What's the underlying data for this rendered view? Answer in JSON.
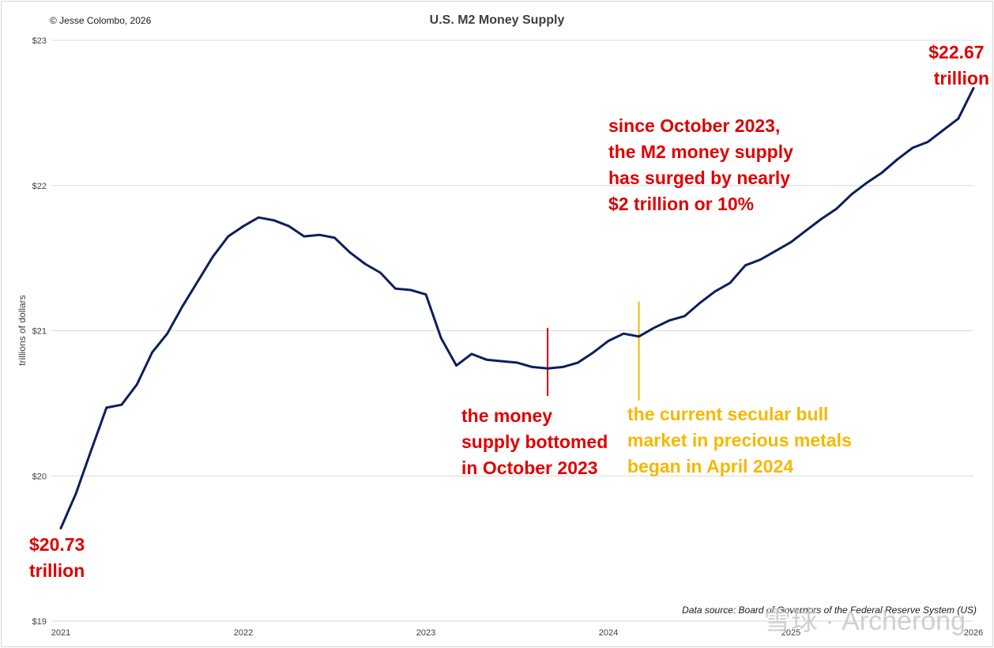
{
  "chart_data": {
    "type": "line",
    "title": "U.S. M2 Money Supply",
    "copyright": "© Jesse Colombo, 2026",
    "ylabel": "trillions of dollars",
    "xlabel": "",
    "ylim": [
      19,
      23
    ],
    "xlim": [
      2021.0,
      2026.0
    ],
    "grid": "horizontal",
    "y_ticks": [
      {
        "value": 19,
        "label": "$19"
      },
      {
        "value": 20,
        "label": "$20"
      },
      {
        "value": 21,
        "label": "$21"
      },
      {
        "value": 22,
        "label": "$22"
      },
      {
        "value": 23,
        "label": "$23"
      }
    ],
    "x_ticks": [
      {
        "value": 2021,
        "label": "2021"
      },
      {
        "value": 2022,
        "label": "2022"
      },
      {
        "value": 2023,
        "label": "2023"
      },
      {
        "value": 2024,
        "label": "2024"
      },
      {
        "value": 2025,
        "label": "2025"
      },
      {
        "value": 2026,
        "label": "2026"
      }
    ],
    "series": [
      {
        "color": "#0d1f5c",
        "x": [
          2021.0,
          2021.083,
          2021.167,
          2021.25,
          2021.333,
          2021.417,
          2021.5,
          2021.583,
          2021.667,
          2021.75,
          2021.833,
          2021.917,
          2022.0,
          2022.083,
          2022.167,
          2022.25,
          2022.333,
          2022.417,
          2022.5,
          2022.583,
          2022.667,
          2022.75,
          2022.833,
          2022.917,
          2023.0,
          2023.083,
          2023.167,
          2023.25,
          2023.333,
          2023.417,
          2023.5,
          2023.583,
          2023.667,
          2023.75,
          2023.833,
          2023.917,
          2024.0,
          2024.083,
          2024.167,
          2024.25,
          2024.333,
          2024.417,
          2024.5,
          2024.583,
          2024.667,
          2024.75,
          2024.833,
          2024.917,
          2025.0,
          2025.083,
          2025.167,
          2025.25,
          2025.333,
          2025.417,
          2025.5,
          2025.583,
          2025.667,
          2025.75,
          2025.833,
          2025.917
        ],
        "y": [
          19.64,
          19.88,
          20.18,
          20.47,
          20.49,
          20.63,
          20.85,
          20.98,
          21.17,
          21.34,
          21.51,
          21.65,
          21.72,
          21.78,
          21.76,
          21.72,
          21.65,
          21.66,
          21.64,
          21.54,
          21.46,
          21.4,
          21.29,
          21.28,
          21.25,
          20.95,
          20.76,
          20.84,
          20.8,
          20.79,
          20.78,
          20.75,
          20.74,
          20.75,
          20.78,
          20.85,
          20.93,
          20.98,
          20.96,
          21.02,
          21.07,
          21.1,
          21.19,
          21.27,
          21.33,
          21.45,
          21.49,
          21.55,
          21.61,
          21.69,
          21.77,
          21.84,
          21.94,
          22.02,
          22.09,
          22.18,
          22.26,
          22.3,
          22.38,
          22.46
        ]
      }
    ],
    "end_point": {
      "x": 2026.0,
      "y": 22.67
    },
    "annotations": [
      {
        "id": "start",
        "lines": [
          "$20.73",
          "trillion"
        ],
        "color": "#e00000"
      },
      {
        "id": "end",
        "lines": [
          "$22.67",
          "trillion"
        ],
        "color": "#e00000"
      },
      {
        "id": "surge",
        "lines": [
          "since October 2023,",
          "the M2 money supply",
          "has surged by nearly",
          "$2 trillion or 10%"
        ],
        "color": "#e00000"
      },
      {
        "id": "bottom",
        "lines": [
          "the money",
          "supply bottomed",
          "in October 2023"
        ],
        "color": "#e00000"
      },
      {
        "id": "bull",
        "lines": [
          "the current secular bull",
          "market in precious metals",
          "began in April 2024"
        ],
        "color": "#f5b800"
      }
    ],
    "markers": [
      {
        "id": "bottom-marker",
        "x": 2023.667,
        "color": "#e00000",
        "y_from": 20.55,
        "y_to": 21.02
      },
      {
        "id": "bull-marker",
        "x": 2024.167,
        "color": "#f5b800",
        "y_from": 20.52,
        "y_to": 21.2
      }
    ],
    "source": "Data source: Board of Governors of the Federal Reserve System (US)"
  },
  "watermark": "雪球 · Archerong"
}
